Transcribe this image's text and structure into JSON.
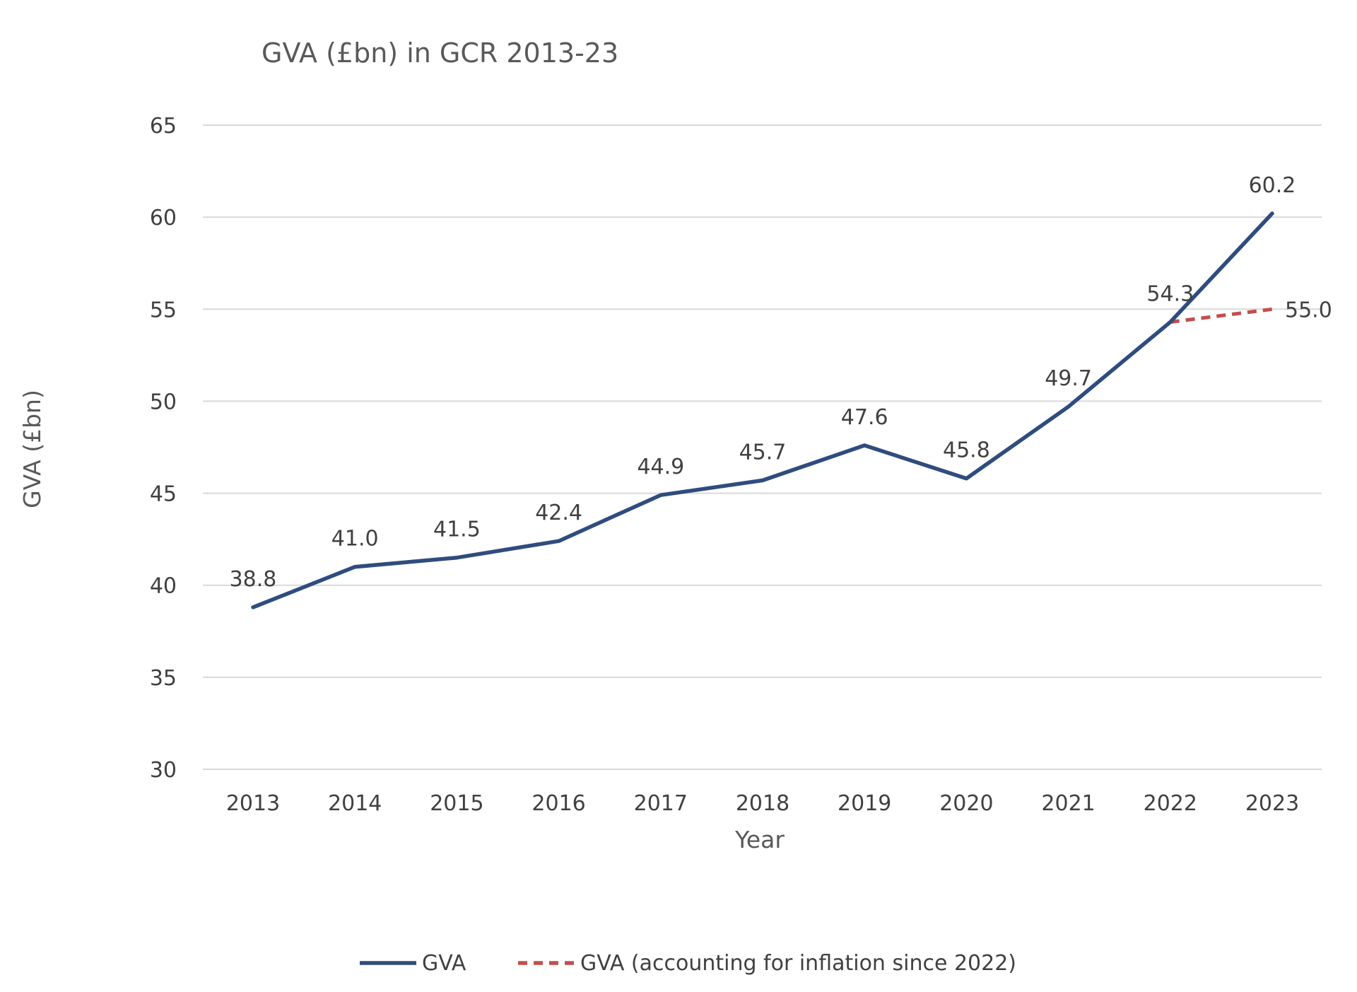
{
  "chart_data": {
    "type": "line",
    "title": "GVA (£bn) in GCR 2013-23",
    "xlabel": "Year",
    "ylabel": "GVA (£bn)",
    "categories": [
      "2013",
      "2014",
      "2015",
      "2016",
      "2017",
      "2018",
      "2019",
      "2020",
      "2021",
      "2022",
      "2023"
    ],
    "ylim": [
      30,
      65
    ],
    "yticks": [
      "30",
      "35",
      "40",
      "45",
      "50",
      "55",
      "60",
      "65"
    ],
    "grid": true,
    "legend_position": "bottom",
    "series": [
      {
        "name": "GVA",
        "style": "solid",
        "color": "#2F4C7E",
        "values": [
          38.8,
          41.0,
          41.5,
          42.4,
          44.9,
          45.7,
          47.6,
          45.8,
          49.7,
          54.3,
          60.2
        ],
        "labels": [
          "38.8",
          "41.0",
          "41.5",
          "42.4",
          "44.9",
          "45.7",
          "47.6",
          "45.8",
          "49.7",
          "54.3",
          "60.2"
        ]
      },
      {
        "name": "GVA (accounting for inflation since 2022)",
        "style": "dashed",
        "color": "#C0504D",
        "values": [
          null,
          null,
          null,
          null,
          null,
          null,
          null,
          null,
          null,
          54.3,
          55.0
        ],
        "labels": [
          null,
          null,
          null,
          null,
          null,
          null,
          null,
          null,
          null,
          null,
          "55.0"
        ]
      }
    ]
  },
  "colors": {
    "grid": "#D9D9D9",
    "text": "#404040",
    "title": "#595959"
  }
}
